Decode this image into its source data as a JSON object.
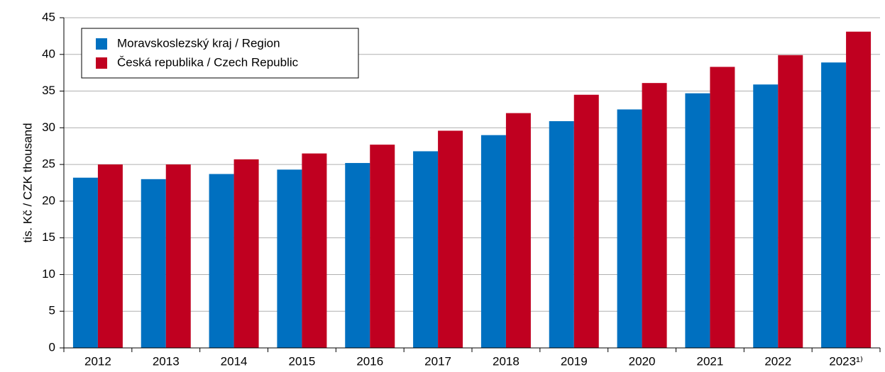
{
  "chart_data": {
    "type": "bar",
    "y_label": "tis. Kč / CZK thousand",
    "categories": [
      "2012",
      "2013",
      "2014",
      "2015",
      "2016",
      "2017",
      "2018",
      "2019",
      "2020",
      "2021",
      "2022",
      "2023¹⁾"
    ],
    "series": [
      {
        "name": "Moravskoslezský kraj / Region",
        "color": "#0070c0",
        "values": [
          23.2,
          23.0,
          23.7,
          24.3,
          25.2,
          26.8,
          29.0,
          30.9,
          32.5,
          34.7,
          35.9,
          38.9
        ]
      },
      {
        "name": "Česká republika / Czech Republic",
        "color": "#c00020",
        "values": [
          25.0,
          25.0,
          25.7,
          26.5,
          27.7,
          29.6,
          32.0,
          34.5,
          36.1,
          38.3,
          39.9,
          43.1
        ]
      }
    ],
    "ylim": [
      0,
      45
    ],
    "yticks": [
      0,
      5,
      10,
      15,
      20,
      25,
      30,
      35,
      40,
      45
    ],
    "grid": true,
    "legend": "upper left"
  }
}
